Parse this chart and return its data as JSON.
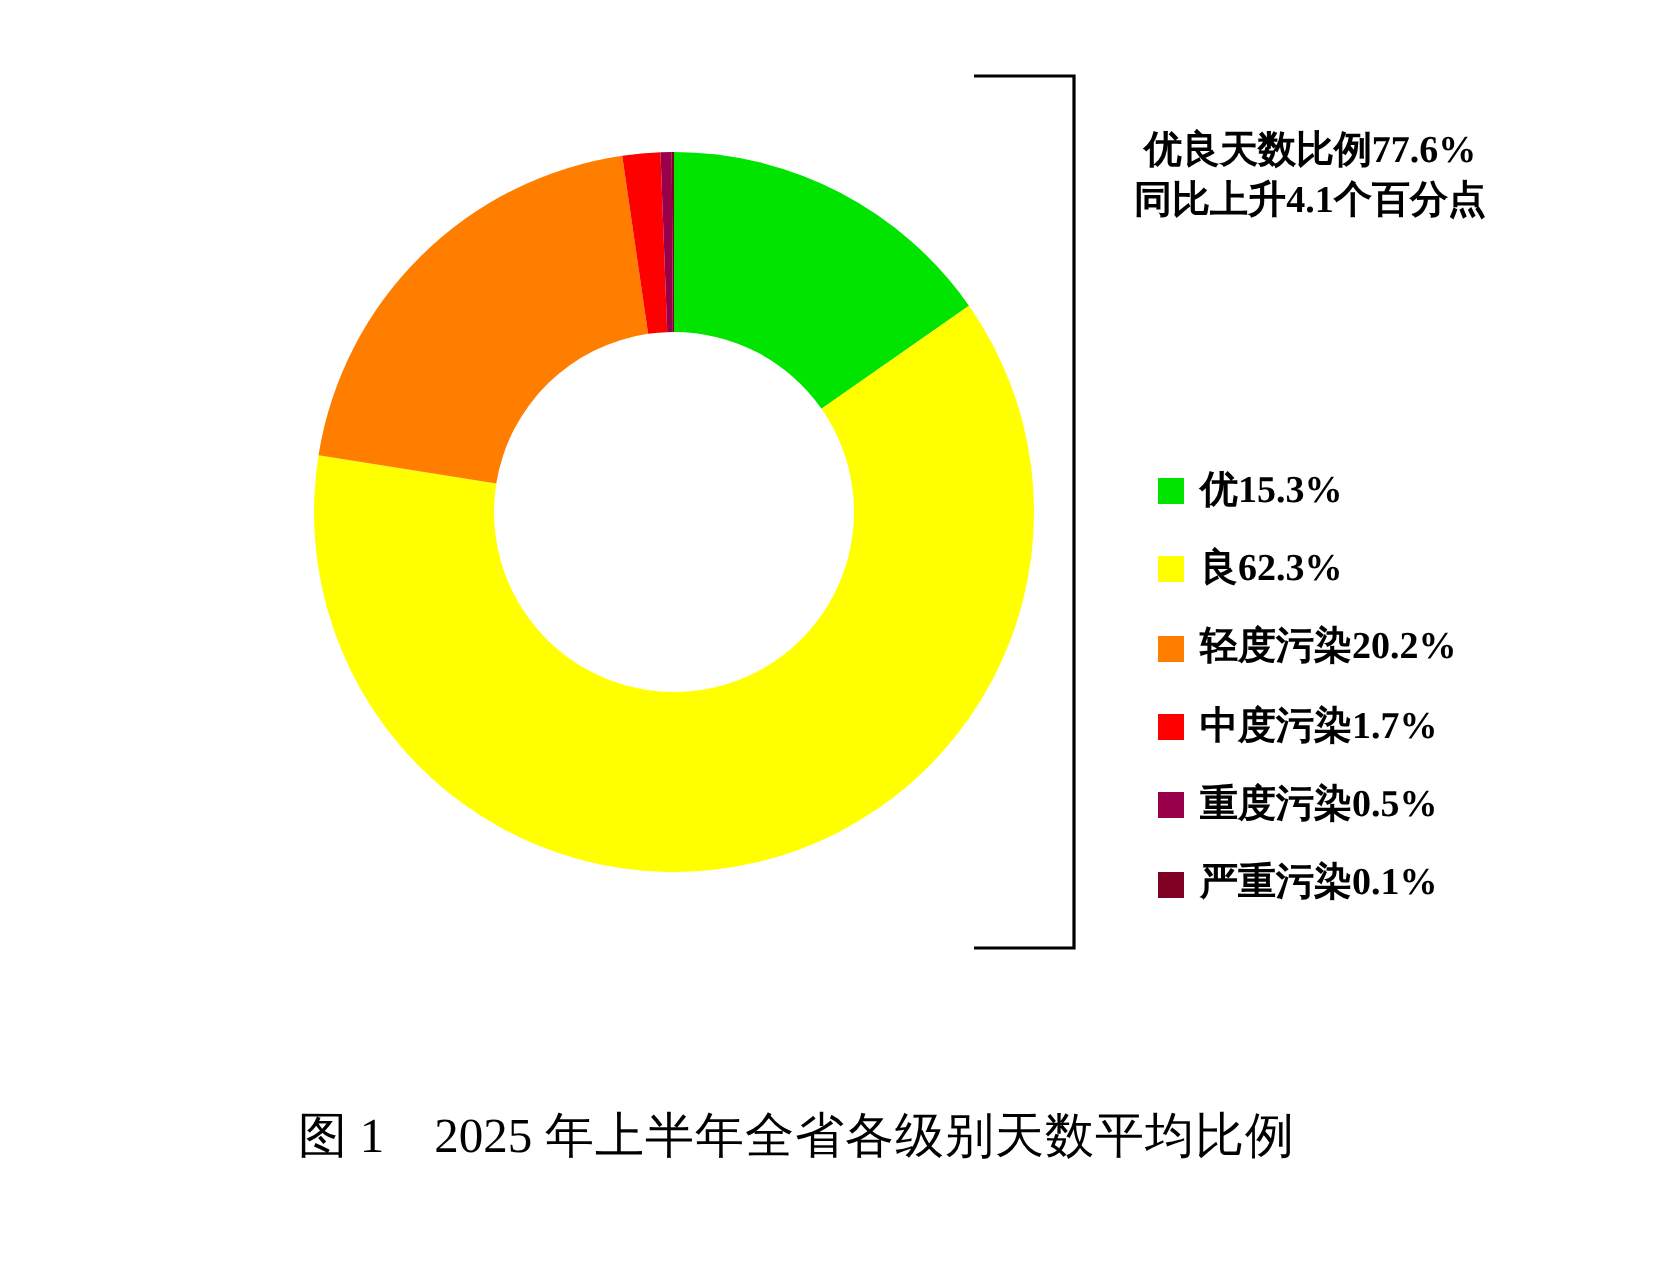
{
  "chart_data": {
    "type": "donut",
    "title": "图 1　2025 年上半年全省各级别天数平均比例",
    "annotations": [
      "优良天数比例77.6%",
      "同比上升4.1个百分点"
    ],
    "categories": [
      "优15.3%",
      "良62.3%",
      "轻度污染20.2%",
      "中度污染1.7%",
      "重度污染0.5%",
      "严重污染0.1%"
    ],
    "values": [
      15.3,
      62.3,
      20.2,
      1.7,
      0.5,
      0.1
    ],
    "colors": [
      "#00e400",
      "#ffff00",
      "#ff7e00",
      "#ff0000",
      "#99004c",
      "#7e0023"
    ],
    "legend": "right"
  }
}
